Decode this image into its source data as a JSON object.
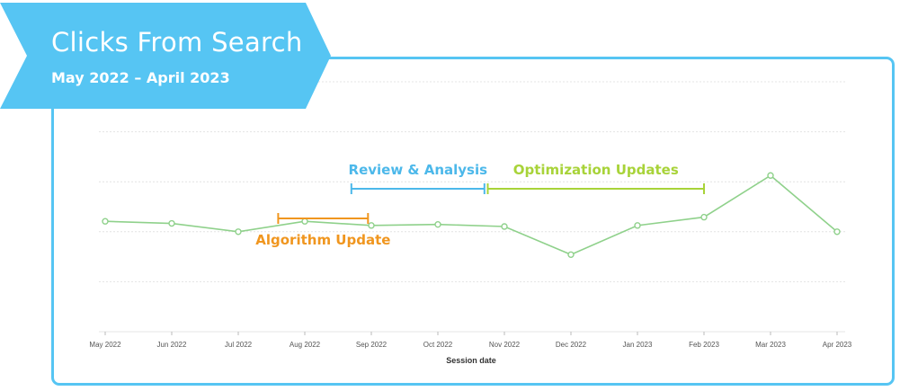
{
  "header": {
    "title": "Clicks From Search",
    "subtitle": "May 2022 – April 2023"
  },
  "colors": {
    "banner": "#56c5f3",
    "frame": "#56c5f3",
    "line": "#8fd18b",
    "gridline": "#e4e4e4",
    "algorithm": "#f0961f",
    "review": "#4cb8ea",
    "optimization": "#a8d339",
    "tick_text": "#555555",
    "axis_title": "#333333"
  },
  "chart_data": {
    "type": "line",
    "xlabel": "Session date",
    "ylabel": "",
    "categories": [
      "May 2022",
      "Jun 2022",
      "Jul 2022",
      "Aug 2022",
      "Sep 2022",
      "Oct 2022",
      "Nov 2022",
      "Dec 2022",
      "Jan 2023",
      "Feb 2023",
      "Mar 2023",
      "Apr 2023"
    ],
    "values": [
      53,
      52,
      48,
      53,
      51,
      51.5,
      50.5,
      37,
      51,
      55,
      75,
      48
    ],
    "ylim": [
      0,
      120
    ],
    "grid": true,
    "annotations": [
      {
        "label": "Algorithm Update",
        "start": 2.6,
        "end": 3.95,
        "color_key": "algorithm",
        "position": "below"
      },
      {
        "label": "Review & Analysis",
        "start": 3.7,
        "end": 5.7,
        "color_key": "review",
        "position": "above"
      },
      {
        "label": "Optimization Updates",
        "start": 5.75,
        "end": 9.0,
        "color_key": "optimization",
        "position": "above"
      }
    ]
  }
}
